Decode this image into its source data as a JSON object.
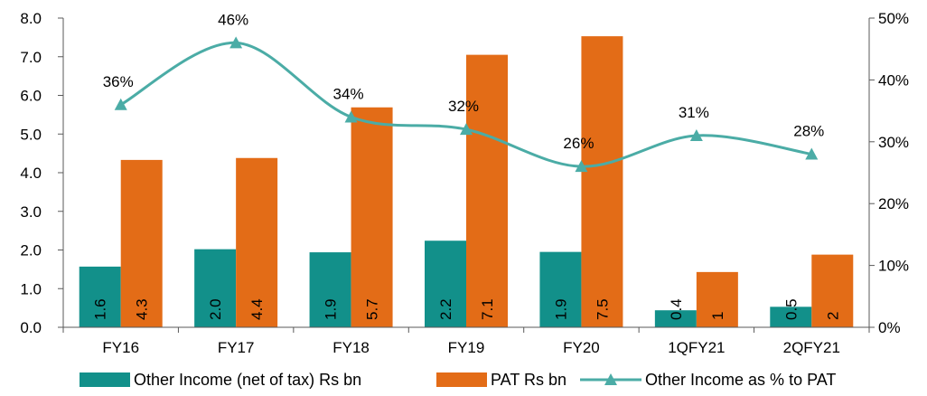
{
  "chart_data": {
    "type": "bar",
    "categories": [
      "FY16",
      "FY17",
      "FY18",
      "FY19",
      "FY20",
      "1QFY21",
      "2QFY21"
    ],
    "series": [
      {
        "name": "Other Income (net of tax) Rs bn",
        "kind": "bar",
        "axis": "left",
        "color": "#12908A",
        "values": [
          1.57,
          2.02,
          1.94,
          2.24,
          1.95,
          0.44,
          0.53
        ],
        "labels": [
          "1.6",
          "2.0",
          "1.9",
          "2.2",
          "1.9",
          "0.4",
          "0.5"
        ]
      },
      {
        "name": "PAT Rs bn",
        "kind": "bar",
        "axis": "left",
        "color": "#E36C17",
        "values": [
          4.33,
          4.38,
          5.69,
          7.05,
          7.53,
          1.43,
          1.88
        ],
        "labels": [
          "4.3",
          "4.4",
          "5.7",
          "7.1",
          "7.5",
          "1",
          "2"
        ]
      },
      {
        "name": "Other Income as % to PAT",
        "kind": "line",
        "axis": "right",
        "color": "#4BACA6",
        "values": [
          36,
          46,
          34,
          32,
          26,
          31,
          28
        ],
        "labels": [
          "36%",
          "46%",
          "34%",
          "32%",
          "26%",
          "31%",
          "28%"
        ]
      }
    ],
    "y_left": {
      "min": 0,
      "max": 8,
      "ticks": [
        "0.0",
        "1.0",
        "2.0",
        "3.0",
        "4.0",
        "5.0",
        "6.0",
        "7.0",
        "8.0"
      ]
    },
    "y_right": {
      "min": 0,
      "max": 50,
      "ticks": [
        "0%",
        "10%",
        "20%",
        "30%",
        "40%",
        "50%"
      ]
    },
    "legend_position": "bottom",
    "grid": false
  }
}
